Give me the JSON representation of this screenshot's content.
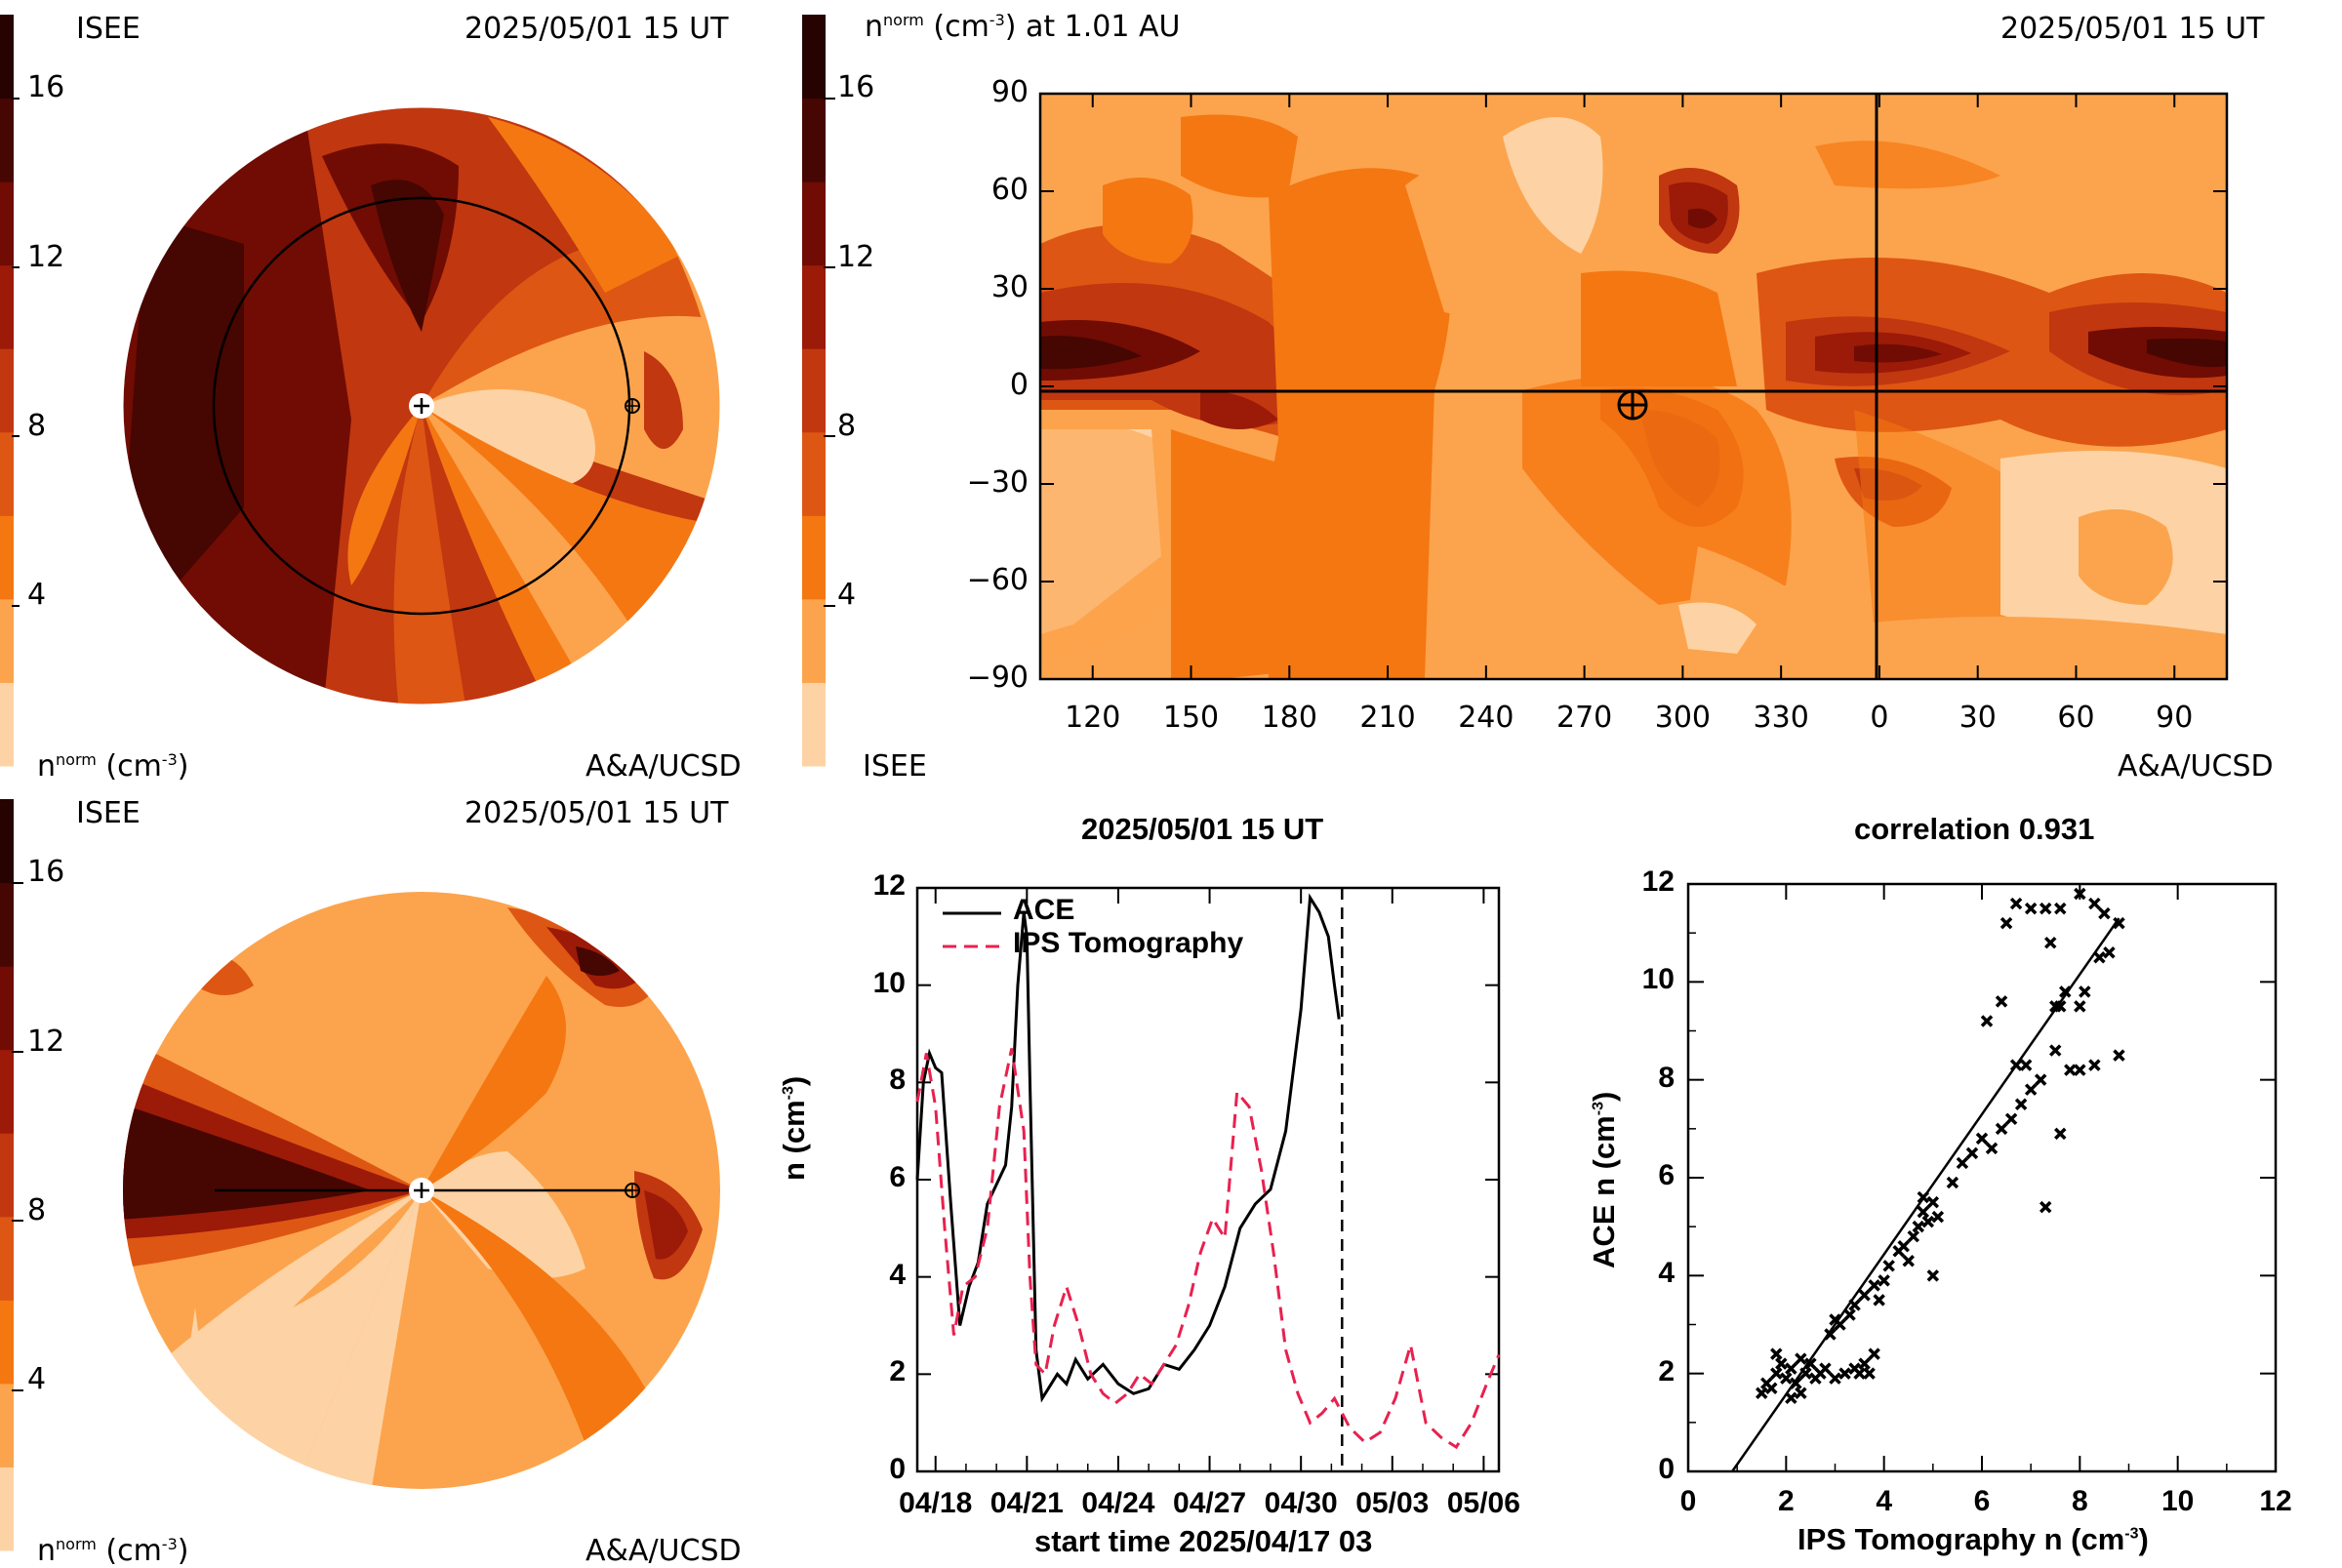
{
  "colors": {
    "scale": [
      "#fdd3a5",
      "#fca44d",
      "#f57711",
      "#de5613",
      "#c13710",
      "#9c1a08",
      "#700c03",
      "#460601",
      "#260300"
    ],
    "line_ace": "#000000",
    "line_ips": "#e8214f"
  },
  "colorbar": {
    "ticks": [
      "16",
      "12",
      "8",
      "4"
    ]
  },
  "panels": {
    "tl": {
      "label_left": "ISEE",
      "label_time": "2025/05/01 15 UT",
      "unit_base": "n",
      "unit_sup": "norm",
      "unit_rest": "(cm",
      "unit_exp": "-3",
      "unit_close": ")",
      "credit": "A&A/UCSD"
    },
    "tr": {
      "title_base": "n",
      "title_sup": "norm",
      "title_rest": "(cm",
      "title_exp": "-3",
      "title_close": ") at 1.01 AU",
      "time": "2025/05/01 15 UT",
      "label_left": "ISEE",
      "credit": "A&A/UCSD",
      "y_ticks": [
        "90",
        "60",
        "30",
        "0",
        "−30",
        "−60",
        "−90"
      ],
      "x_ticks": [
        "120",
        "150",
        "180",
        "210",
        "240",
        "270",
        "300",
        "330",
        "0",
        "30",
        "60",
        "90"
      ]
    },
    "bl": {
      "label_left": "ISEE",
      "label_time": "2025/05/01 15 UT",
      "unit_base": "n",
      "unit_sup": "norm",
      "unit_rest": "(cm",
      "unit_exp": "-3",
      "unit_close": ")",
      "credit": "A&A/UCSD"
    }
  },
  "chart_data": [
    {
      "type": "line",
      "title": "2025/05/01 15 UT",
      "xlabel": "start time 2025/04/17 03",
      "ylabel_base": "n (cm",
      "ylabel_exp": "-3",
      "ylabel_close": ")",
      "x_tick_labels": [
        "04/18",
        "04/21",
        "04/24",
        "04/27",
        "04/30",
        "05/03",
        "05/06"
      ],
      "x_tick_days": [
        1,
        4,
        7,
        10,
        13,
        16,
        19
      ],
      "xlim": [
        0.4,
        19.5
      ],
      "ylim": [
        0,
        12
      ],
      "y_ticks": [
        "0",
        "2",
        "4",
        "6",
        "8",
        "10",
        "12"
      ],
      "now_marker_day": 14.35,
      "series": [
        {
          "name": "ACE",
          "color": "#000000",
          "x": [
            0.4,
            0.6,
            0.8,
            1.0,
            1.2,
            1.5,
            1.8,
            2.1,
            2.4,
            2.7,
            3.0,
            3.3,
            3.5,
            3.7,
            3.9,
            4.0,
            4.1,
            4.3,
            4.5,
            4.7,
            5.0,
            5.3,
            5.6,
            6.0,
            6.5,
            7.0,
            7.5,
            8.0,
            8.5,
            9.0,
            9.5,
            10.0,
            10.5,
            11.0,
            11.5,
            12.0,
            12.5,
            13.0,
            13.3,
            13.6,
            13.9,
            14.1,
            14.25
          ],
          "y": [
            6.0,
            8.0,
            8.6,
            8.3,
            8.2,
            5.5,
            3.0,
            3.8,
            4.3,
            5.5,
            5.9,
            6.3,
            7.5,
            10.0,
            11.5,
            11.0,
            8.0,
            2.5,
            1.5,
            1.7,
            2.0,
            1.8,
            2.3,
            1.9,
            2.2,
            1.8,
            1.6,
            1.7,
            2.2,
            2.1,
            2.5,
            3.0,
            3.8,
            5.0,
            5.5,
            5.8,
            7.0,
            9.5,
            11.8,
            11.5,
            11.0,
            10.0,
            9.3
          ]
        },
        {
          "name": "IPS Tomography",
          "color": "#e8214f",
          "x": [
            0.4,
            0.7,
            1.0,
            1.3,
            1.6,
            1.9,
            2.3,
            2.7,
            3.1,
            3.5,
            3.9,
            4.1,
            4.3,
            4.6,
            4.9,
            5.3,
            5.7,
            6.1,
            6.5,
            6.9,
            7.3,
            7.7,
            8.1,
            8.5,
            8.9,
            9.3,
            9.7,
            10.1,
            10.5,
            10.9,
            11.3,
            11.7,
            12.1,
            12.5,
            12.9,
            13.3,
            13.7,
            14.1,
            14.6,
            15.1,
            15.6,
            16.1,
            16.6,
            17.1,
            17.6,
            18.1,
            18.6,
            19.1,
            19.5
          ],
          "y": [
            7.6,
            8.6,
            7.5,
            5.0,
            2.8,
            3.8,
            4.0,
            5.0,
            7.5,
            8.7,
            7.0,
            4.0,
            2.2,
            2.0,
            3.0,
            3.8,
            3.0,
            2.0,
            1.6,
            1.4,
            1.6,
            2.0,
            1.8,
            2.2,
            2.6,
            3.4,
            4.5,
            5.2,
            4.8,
            7.8,
            7.5,
            6.2,
            4.5,
            2.5,
            1.6,
            1.0,
            1.2,
            1.5,
            0.9,
            0.6,
            0.8,
            1.5,
            2.6,
            1.0,
            0.7,
            0.5,
            1.0,
            1.8,
            2.4
          ]
        }
      ],
      "legend": "top-left"
    },
    {
      "type": "scatter",
      "title": "correlation 0.931",
      "xlabel_base": "IPS Tomography n (cm",
      "xlabel_exp": "-3",
      "xlabel_close": ")",
      "ylabel_base": "ACE n (cm",
      "ylabel_exp": "-3",
      "ylabel_close": ")",
      "xlim": [
        0,
        12
      ],
      "ylim": [
        0,
        12
      ],
      "x_ticks": [
        "0",
        "2",
        "4",
        "6",
        "8",
        "10",
        "12"
      ],
      "y_ticks": [
        "0",
        "2",
        "4",
        "6",
        "8",
        "10",
        "12"
      ],
      "fit_line": {
        "x": [
          0.9,
          8.8
        ],
        "y": [
          -0.2,
          11.3
        ]
      },
      "points": [
        [
          1.5,
          1.6
        ],
        [
          1.6,
          1.8
        ],
        [
          1.7,
          1.7
        ],
        [
          1.8,
          2.0
        ],
        [
          1.9,
          2.2
        ],
        [
          2.0,
          1.9
        ],
        [
          2.1,
          2.1
        ],
        [
          2.2,
          1.8
        ],
        [
          2.3,
          2.3
        ],
        [
          2.1,
          1.5
        ],
        [
          2.3,
          1.6
        ],
        [
          2.4,
          2.0
        ],
        [
          2.5,
          2.2
        ],
        [
          1.8,
          2.4
        ],
        [
          2.6,
          1.9
        ],
        [
          2.7,
          2.0
        ],
        [
          2.8,
          2.1
        ],
        [
          3.0,
          1.9
        ],
        [
          3.2,
          2.0
        ],
        [
          3.4,
          2.1
        ],
        [
          3.6,
          2.2
        ],
        [
          3.7,
          2.0
        ],
        [
          3.8,
          2.4
        ],
        [
          3.5,
          2.0
        ],
        [
          2.9,
          2.8
        ],
        [
          3.0,
          3.1
        ],
        [
          3.1,
          3.0
        ],
        [
          3.3,
          3.2
        ],
        [
          3.4,
          3.4
        ],
        [
          3.6,
          3.6
        ],
        [
          3.8,
          3.8
        ],
        [
          3.9,
          3.5
        ],
        [
          4.0,
          3.9
        ],
        [
          4.1,
          4.2
        ],
        [
          4.3,
          4.5
        ],
        [
          4.4,
          4.6
        ],
        [
          4.5,
          4.3
        ],
        [
          4.6,
          4.8
        ],
        [
          4.7,
          5.0
        ],
        [
          4.8,
          5.3
        ],
        [
          4.9,
          5.1
        ],
        [
          5.0,
          5.5
        ],
        [
          5.1,
          5.2
        ],
        [
          4.8,
          5.6
        ],
        [
          5.0,
          4.0
        ],
        [
          5.4,
          5.9
        ],
        [
          5.6,
          6.3
        ],
        [
          5.8,
          6.5
        ],
        [
          6.0,
          6.8
        ],
        [
          6.2,
          6.6
        ],
        [
          6.4,
          7.0
        ],
        [
          6.6,
          7.2
        ],
        [
          6.8,
          7.5
        ],
        [
          7.0,
          7.8
        ],
        [
          7.2,
          8.0
        ],
        [
          6.7,
          8.3
        ],
        [
          7.6,
          9.5
        ],
        [
          7.7,
          9.8
        ],
        [
          8.0,
          9.5
        ],
        [
          8.1,
          9.8
        ],
        [
          8.4,
          10.5
        ],
        [
          8.6,
          10.6
        ],
        [
          8.8,
          11.2
        ],
        [
          8.5,
          11.4
        ],
        [
          8.3,
          11.6
        ],
        [
          8.0,
          11.8
        ],
        [
          7.6,
          11.5
        ],
        [
          7.3,
          11.5
        ],
        [
          7.0,
          11.5
        ],
        [
          6.7,
          11.6
        ],
        [
          6.5,
          11.2
        ],
        [
          7.4,
          10.8
        ],
        [
          7.5,
          9.5
        ],
        [
          7.5,
          8.6
        ],
        [
          7.8,
          8.2
        ],
        [
          8.0,
          8.2
        ],
        [
          8.3,
          8.3
        ],
        [
          8.8,
          8.5
        ],
        [
          7.3,
          5.4
        ],
        [
          7.6,
          6.9
        ],
        [
          6.9,
          8.3
        ],
        [
          6.1,
          9.2
        ],
        [
          6.4,
          9.6
        ]
      ]
    }
  ]
}
